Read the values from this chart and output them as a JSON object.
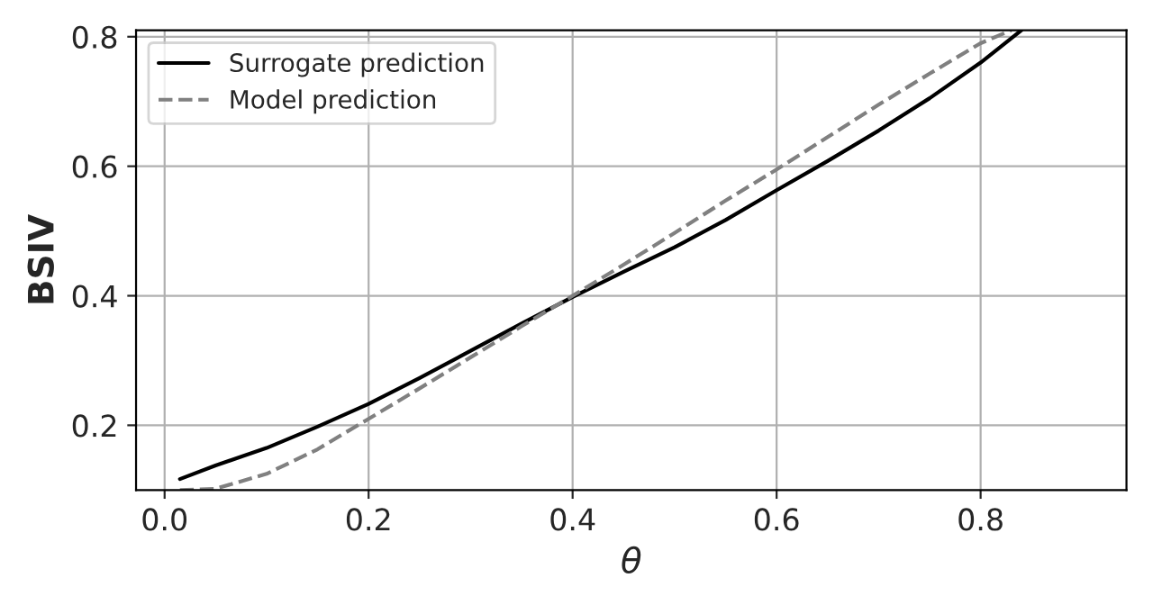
{
  "chart_data": {
    "type": "line",
    "xlabel": "θ",
    "ylabel": "BSIV",
    "xlim": [
      -0.028,
      0.943
    ],
    "ylim": [
      0.1,
      0.81
    ],
    "xticks": [
      {
        "value": 0,
        "label": "0.0"
      },
      0.2,
      0.4,
      0.6,
      0.8
    ],
    "yticks": [
      0.2,
      0.4,
      0.6,
      0.8
    ],
    "grid": true,
    "legend": "top left",
    "series": [
      {
        "name": "Surrogate prediction",
        "color": "#000000",
        "line_style": "solid",
        "x": [
          0.015,
          0.05,
          0.1,
          0.15,
          0.2,
          0.25,
          0.3,
          0.35,
          0.4,
          0.45,
          0.5,
          0.55,
          0.6,
          0.65,
          0.7,
          0.75,
          0.8,
          0.84
        ],
        "values": [
          0.117,
          0.138,
          0.165,
          0.198,
          0.233,
          0.273,
          0.315,
          0.357,
          0.398,
          0.437,
          0.475,
          0.517,
          0.563,
          0.608,
          0.655,
          0.705,
          0.76,
          0.81
        ]
      },
      {
        "name": "Model prediction",
        "color": "#808080",
        "line_style": "dashed",
        "x": [
          0.015,
          0.05,
          0.1,
          0.15,
          0.2,
          0.25,
          0.3,
          0.35,
          0.4,
          0.45,
          0.5,
          0.55,
          0.6,
          0.65,
          0.7,
          0.75,
          0.8,
          0.83
        ],
        "values": [
          0.1,
          0.102,
          0.125,
          0.163,
          0.21,
          0.257,
          0.305,
          0.353,
          0.4,
          0.448,
          0.497,
          0.547,
          0.595,
          0.645,
          0.695,
          0.743,
          0.79,
          0.81
        ]
      }
    ]
  }
}
